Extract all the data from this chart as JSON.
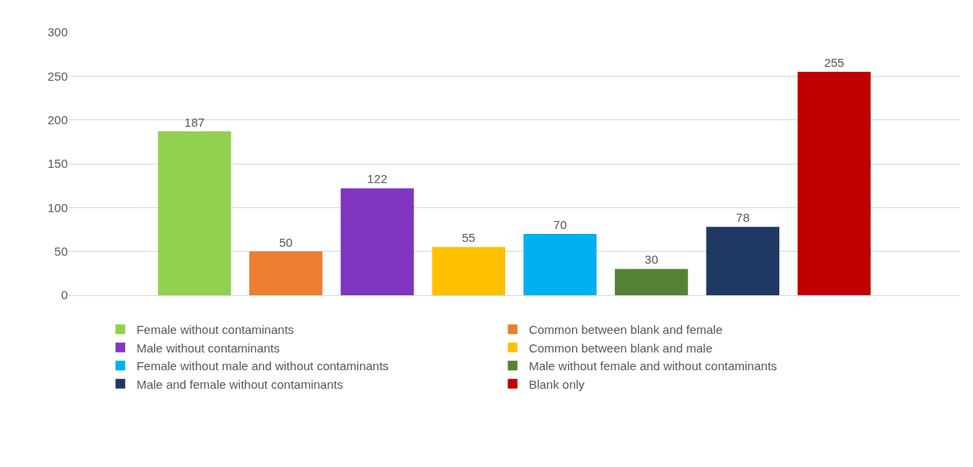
{
  "chart_data": {
    "type": "bar",
    "categories": [
      null
    ],
    "series": [
      {
        "name": "Female without contaminants",
        "color": "#92d050",
        "values": [
          187
        ]
      },
      {
        "name": "Common between blank and female",
        "color": "#ed7d31",
        "values": [
          50
        ]
      },
      {
        "name": "Male without contaminants",
        "color": "#7f35bf",
        "values": [
          122
        ]
      },
      {
        "name": "Common between blank and male",
        "color": "#ffc000",
        "values": [
          55
        ]
      },
      {
        "name": "Female without male and without contaminants",
        "color": "#00b0f0",
        "values": [
          70
        ]
      },
      {
        "name": "Male without female and without contaminants",
        "color": "#548235",
        "values": [
          30
        ]
      },
      {
        "name": "Male and female without contaminants",
        "color": "#203864",
        "values": [
          78
        ]
      },
      {
        "name": "Blank only",
        "color": "#c00000",
        "values": [
          255
        ]
      }
    ],
    "ylim": [
      0,
      300
    ],
    "yticks": [
      0,
      50,
      100,
      150,
      200,
      250,
      300
    ],
    "grid": "y",
    "legend": "bottom",
    "data_labels": true
  }
}
